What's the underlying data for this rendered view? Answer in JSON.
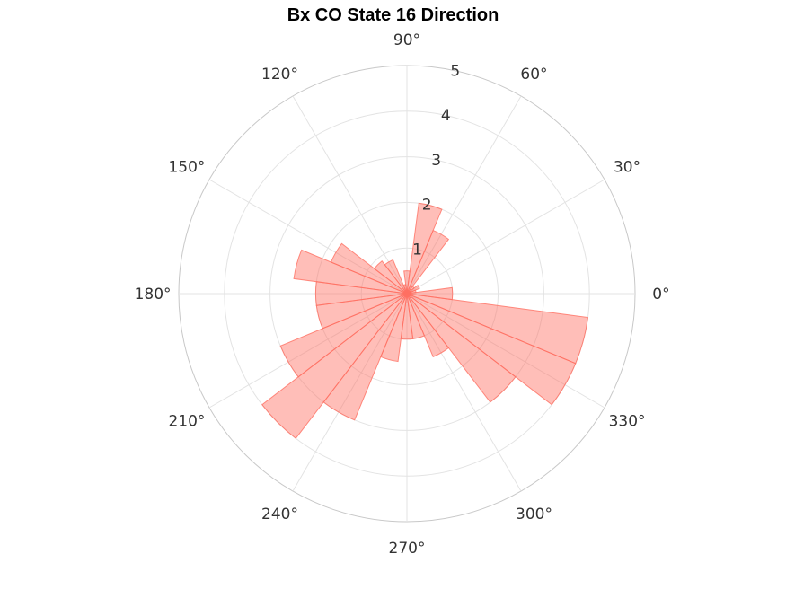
{
  "chart_data": {
    "type": "polar-bar",
    "title": "Bx  CO State 16 Direction",
    "angle_ticks": [
      {
        "angle": 0,
        "label": "0°"
      },
      {
        "angle": 30,
        "label": "30°"
      },
      {
        "angle": 60,
        "label": "60°"
      },
      {
        "angle": 90,
        "label": "90°"
      },
      {
        "angle": 120,
        "label": "120°"
      },
      {
        "angle": 150,
        "label": "150°"
      },
      {
        "angle": 180,
        "label": "180°"
      },
      {
        "angle": 210,
        "label": "210°"
      },
      {
        "angle": 240,
        "label": "240°"
      },
      {
        "angle": 270,
        "label": "270°"
      },
      {
        "angle": 300,
        "label": "300°"
      },
      {
        "angle": 330,
        "label": "330°"
      }
    ],
    "radial_ticks": [
      {
        "value": 1,
        "label": "1"
      },
      {
        "value": 2,
        "label": "2"
      },
      {
        "value": 3,
        "label": "3"
      },
      {
        "value": 4,
        "label": "4"
      },
      {
        "value": 5,
        "label": "5"
      }
    ],
    "rlim": [
      0,
      5
    ],
    "bin_width_deg": 15,
    "bin_start_deg": -7.5,
    "values": [
      1.0,
      0.2,
      0.3,
      0.2,
      1.5,
      2.0,
      0.5,
      0.2,
      0.8,
      0.9,
      1.8,
      2.5,
      2.0,
      2.0,
      3.0,
      4.0,
      3.0,
      1.5,
      1.0,
      1.0,
      1.5,
      3.0,
      4.0,
      4.0
    ],
    "bar_color": "#ff6f61",
    "grid": true
  }
}
